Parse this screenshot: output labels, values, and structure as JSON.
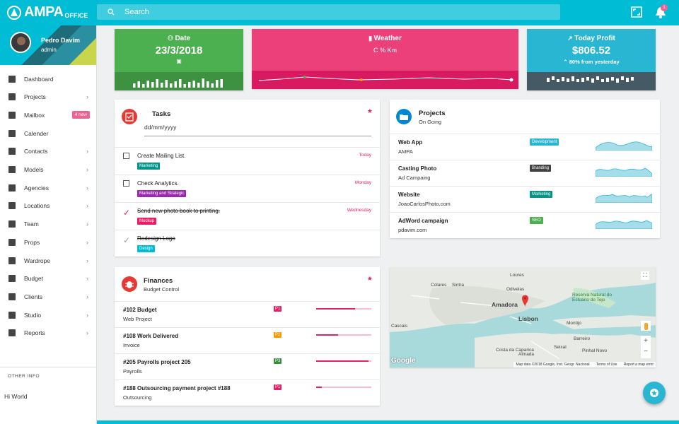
{
  "app": {
    "logo": "AMPA",
    "logo_sub": "OFFICE"
  },
  "search": {
    "placeholder": "Search"
  },
  "topbar": {
    "notif_count": "1"
  },
  "profile": {
    "name": "Pedro Davim",
    "role": "admin"
  },
  "nav": [
    {
      "label": "Dashboard",
      "icon": "dashboard-icon",
      "chevron": false
    },
    {
      "label": "Projects",
      "icon": "projects-icon",
      "chevron": true
    },
    {
      "label": "Mailbox",
      "icon": "mail-icon",
      "chevron": false,
      "badge": "4 new"
    },
    {
      "label": "Calender",
      "icon": "calendar-icon",
      "chevron": false
    },
    {
      "label": "Contacts",
      "icon": "contacts-icon",
      "chevron": true
    },
    {
      "label": "Models",
      "icon": "models-icon",
      "chevron": true
    },
    {
      "label": "Agencies",
      "icon": "agencies-icon",
      "chevron": true
    },
    {
      "label": "Locations",
      "icon": "locations-icon",
      "chevron": true
    },
    {
      "label": "Team",
      "icon": "team-icon",
      "chevron": true
    },
    {
      "label": "Props",
      "icon": "props-icon",
      "chevron": true
    },
    {
      "label": "Wardrope",
      "icon": "wardrope-icon",
      "chevron": true
    },
    {
      "label": "Budget",
      "icon": "cart-icon",
      "chevron": true
    },
    {
      "label": "Clients",
      "icon": "clients-icon",
      "chevron": true
    },
    {
      "label": "Studio",
      "icon": "studio-icon",
      "chevron": true
    },
    {
      "label": "Reports",
      "icon": "reports-icon",
      "chevron": true
    }
  ],
  "other_info": {
    "title": "OTHER INFO",
    "text": "Hi World"
  },
  "stats": {
    "date": {
      "title": "Date",
      "value": "23/3/2018",
      "color": "#4caf50",
      "foot_color": "#3d9140"
    },
    "weather": {
      "title": "Weather",
      "value": "C % Km",
      "color": "#ec407a",
      "foot_color": "#d81b60"
    },
    "profit": {
      "title": "Today Profit",
      "value": "$806.52",
      "sub": "80% from yesterday",
      "color": "#29b6d3",
      "foot_color": "#455a64"
    }
  },
  "tasks": {
    "title": "Tasks",
    "input_placeholder": "dd/mm/yyyy",
    "items": [
      {
        "text": "Create Mailing List.",
        "tag": "Marketing",
        "tag_color": "#009688",
        "day": "Today",
        "done": false
      },
      {
        "text": "Check Analytics.",
        "tag": "Marketing and Strategic",
        "tag_color": "#9c27b0",
        "day": "Monday",
        "done": false
      },
      {
        "text": "Send new photo book to printing.",
        "tag": "Mockup",
        "tag_color": "#e91e63",
        "day": "Wednesday",
        "done": true
      },
      {
        "text": "Redesign Logo",
        "tag": "Design",
        "tag_color": "#00bcd4",
        "day": "",
        "done": true
      }
    ]
  },
  "projects": {
    "title": "Projects",
    "subtitle": "On Going",
    "items": [
      {
        "name": "Web App",
        "client": "AMPA",
        "tag": "Development",
        "tag_color": "#29b6d3"
      },
      {
        "name": "Casting Photo",
        "client": "Ad Campaing",
        "tag": "Branding",
        "tag_color": "#424242"
      },
      {
        "name": "Website",
        "client": "JoaoCarlosPhoto.com",
        "tag": "Marketing",
        "tag_color": "#009688"
      },
      {
        "name": "AdWord campaign",
        "client": "pdavim.com",
        "tag": "SEO",
        "tag_color": "#4caf50"
      }
    ]
  },
  "finances": {
    "title": "Finances",
    "subtitle": "Budget Control",
    "items": [
      {
        "name": "#102 Budget",
        "sub": "Web Project",
        "priority": "P1",
        "priority_color": "#e91e63",
        "progress": 0.7
      },
      {
        "name": "#108 Work Delivered",
        "sub": "Invoice",
        "priority": "P2",
        "priority_color": "#ff9800",
        "progress": 0.4
      },
      {
        "name": "#205 Payrolls project 205",
        "sub": "Payrolls",
        "priority": "P3",
        "priority_color": "#388e3c",
        "progress": 0.95
      },
      {
        "name": "#188 Outsourcing payment project #188",
        "sub": "Outsourcing",
        "priority": "P1",
        "priority_color": "#e91e63",
        "progress": 0.1
      }
    ]
  },
  "map": {
    "labels": [
      "Loures",
      "Colares",
      "Sintra",
      "Odivelas",
      "Amadora",
      "Lisbon",
      "Cascais",
      "Almada",
      "Costa da Caparica",
      "Seixal",
      "Montijo",
      "Barreiro",
      "Pinhal Novo",
      "Reserva Natural do Estuário do Tejo"
    ],
    "attribution": "Map data ©2018 Google, Inst. Geogr. Nacional",
    "terms": "Terms of Use",
    "report": "Report a map error",
    "google": "Google"
  }
}
